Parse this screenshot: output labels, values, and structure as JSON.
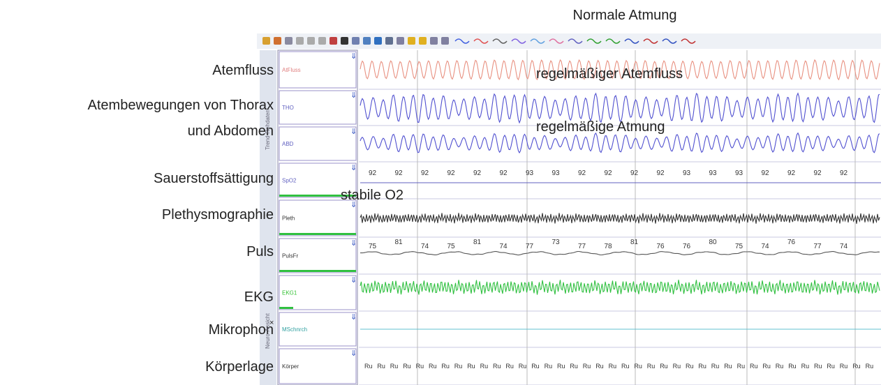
{
  "header": {
    "title": "Normale Atmung"
  },
  "left_labels": [
    "Atemfluss",
    "Atembewegungen von Thorax",
    "und Abdomen",
    "Sauerstoffsättigung",
    "Plethysmographie",
    "Puls",
    "EKG",
    "Mikrophon",
    "Körperlage"
  ],
  "channels": [
    "AtFluss",
    "THO",
    "ABD",
    "SpO2",
    "Pleth",
    "PulsFr",
    "EKG1",
    "MSchnrch",
    "Körper"
  ],
  "side_tabs": [
    "Trend-Rohdaten",
    "Neuro-Ansicht"
  ],
  "annotations": [
    "regelmäßiger Atemfluss",
    "regelmäßige Atmung",
    "stabile O2"
  ],
  "spo2_values": [
    "92",
    "92",
    "92",
    "92",
    "92",
    "92",
    "93",
    "93",
    "92",
    "92",
    "92",
    "92",
    "93",
    "93",
    "93",
    "92",
    "92",
    "92",
    "92"
  ],
  "pulse_values": [
    "75",
    "81",
    "74",
    "75",
    "81",
    "74",
    "77",
    "73",
    "77",
    "78",
    "81",
    "76",
    "76",
    "80",
    "75",
    "74",
    "76",
    "77",
    "74"
  ],
  "position_labels": [
    "Ru",
    "Ru",
    "Ru",
    "Ru",
    "Ru",
    "Ru",
    "Ru",
    "Ru",
    "Ru",
    "Ru",
    "Ru",
    "Ru",
    "Ru",
    "Ru",
    "Ru",
    "Ru",
    "Ru",
    "Ru",
    "Ru",
    "Ru",
    "Ru",
    "Ru",
    "Ru",
    "Ru",
    "Ru",
    "Ru",
    "Ru",
    "Ru",
    "Ru",
    "Ru",
    "Ru",
    "Ru",
    "Ru",
    "Ru",
    "Ru",
    "Ru",
    "Ru",
    "Ru",
    "Ru",
    "Ru"
  ]
}
